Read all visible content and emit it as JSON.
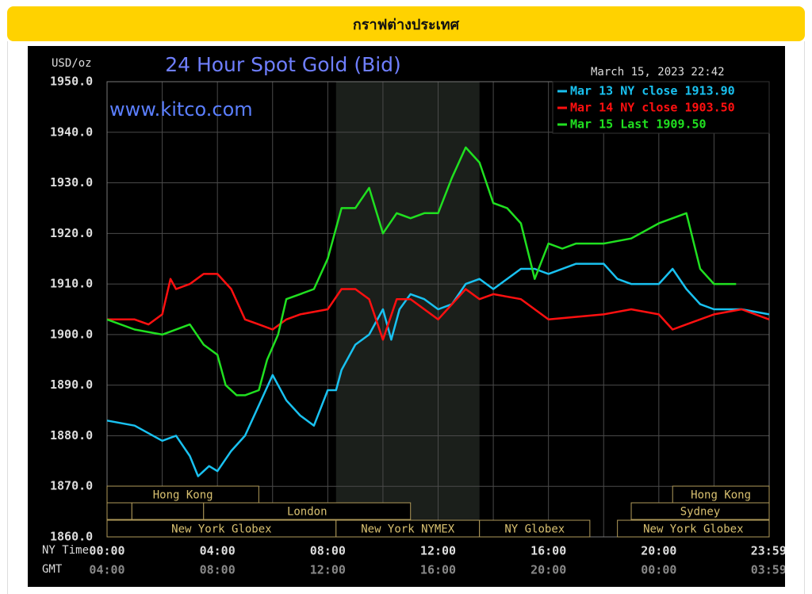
{
  "header": {
    "title": "กราฟต่างประเทศ"
  },
  "chart_data": {
    "type": "line",
    "title": "24 Hour Spot Gold (Bid)",
    "y_label": "USD/oz",
    "timestamp": "March 15, 2023 22:42",
    "watermark": "www.kitco.com",
    "xlim": [
      0,
      24
    ],
    "ylim": [
      1860,
      1950
    ],
    "yticks": [
      {
        "value": 1860,
        "label": "1860.0"
      },
      {
        "value": 1870,
        "label": "1870.0"
      },
      {
        "value": 1880,
        "label": "1880.0"
      },
      {
        "value": 1890,
        "label": "1890.0"
      },
      {
        "value": 1900,
        "label": "1900.0"
      },
      {
        "value": 1910,
        "label": "1910.0"
      },
      {
        "value": 1920,
        "label": "1920.0"
      },
      {
        "value": 1930,
        "label": "1930.0"
      },
      {
        "value": 1940,
        "label": "1940.0"
      },
      {
        "value": 1950,
        "label": "1950.0"
      }
    ],
    "x_row_labels": [
      "NY Time",
      "GMT"
    ],
    "xticks": [
      {
        "value": 0,
        "label": "00:00"
      },
      {
        "value": 4,
        "label": "04:00"
      },
      {
        "value": 8,
        "label": "08:00"
      },
      {
        "value": 12,
        "label": "12:00"
      },
      {
        "value": 16,
        "label": "16:00"
      },
      {
        "value": 20,
        "label": "20:00"
      },
      {
        "value": 23.98,
        "label": "23:59"
      }
    ],
    "gmt_labels": [
      "04:00",
      "08:00",
      "12:00",
      "16:00",
      "20:00",
      "00:00",
      "03:59"
    ],
    "xgrid": [
      0,
      2,
      4,
      6,
      8,
      10,
      12,
      14,
      16,
      18,
      20,
      22,
      24
    ],
    "grid": true,
    "shade": [
      8.3,
      13.5
    ],
    "sessions": [
      {
        "label": "Hong Kong",
        "start": 0,
        "end": 5.5,
        "row": 0
      },
      {
        "label": "Hong Kong",
        "start": 20.5,
        "end": 24,
        "row": 0
      },
      {
        "start": 0,
        "end": 0.9,
        "row": 1
      },
      {
        "start": 0.9,
        "end": 3.5,
        "row": 1
      },
      {
        "label": "London",
        "start": 3.5,
        "end": 11,
        "row": 1
      },
      {
        "label": "Sydney",
        "start": 19,
        "end": 24,
        "row": 1
      },
      {
        "label": "New York Globex",
        "start": 0,
        "end": 8.3,
        "row": 2
      },
      {
        "label": "New York NYMEX",
        "start": 8.3,
        "end": 13.5,
        "row": 2
      },
      {
        "label": "NY Globex",
        "start": 13.5,
        "end": 17.5,
        "row": 2
      },
      {
        "label": "New York Globex",
        "start": 18.5,
        "end": 24,
        "row": 2
      }
    ],
    "series": [
      {
        "name": "Mar 13 NY close 1913.90",
        "color": "#19c1f0",
        "x": [
          0,
          1,
          2,
          2.5,
          3,
          3.3,
          3.7,
          4,
          4.5,
          5,
          5.5,
          6,
          6.5,
          7,
          7.5,
          8,
          8.3,
          8.5,
          9,
          9.5,
          10,
          10.3,
          10.6,
          11,
          11.5,
          12,
          12.5,
          13,
          13.5,
          14,
          14.5,
          15,
          15.5,
          16,
          17,
          18,
          18.5,
          19,
          20,
          20.5,
          21,
          21.5,
          22,
          23,
          24
        ],
        "values": [
          1883,
          1882,
          1879,
          1880,
          1876,
          1872,
          1874,
          1873,
          1877,
          1880,
          1886,
          1892,
          1887,
          1884,
          1882,
          1889,
          1889,
          1893,
          1898,
          1900,
          1905,
          1899,
          1905,
          1908,
          1907,
          1905,
          1906,
          1910,
          1911,
          1909,
          1911,
          1913,
          1913,
          1912,
          1914,
          1914,
          1911,
          1910,
          1910,
          1913,
          1909,
          1906,
          1905,
          1905,
          1904
        ]
      },
      {
        "name": "Mar 14 NY close 1903.50",
        "color": "#ff1010",
        "x": [
          0,
          1,
          1.5,
          2,
          2.3,
          2.5,
          3,
          3.5,
          4,
          4.5,
          5,
          5.5,
          6,
          6.5,
          7,
          8,
          8.5,
          9,
          9.5,
          10,
          10.5,
          11,
          12,
          12.5,
          13,
          13.5,
          14,
          15,
          16,
          18,
          19,
          20,
          20.5,
          21,
          22,
          23,
          24
        ],
        "values": [
          1903,
          1903,
          1902,
          1904,
          1911,
          1909,
          1910,
          1912,
          1912,
          1909,
          1903,
          1902,
          1901,
          1903,
          1904,
          1905,
          1909,
          1909,
          1907,
          1899,
          1907,
          1907,
          1903,
          1906,
          1909,
          1907,
          1908,
          1907,
          1903,
          1904,
          1905,
          1904,
          1901,
          1902,
          1904,
          1905,
          1903
        ]
      },
      {
        "name": "Mar 15 Last 1909.50",
        "color": "#20e020",
        "x": [
          0,
          1,
          2,
          3,
          3.5,
          4,
          4.3,
          4.7,
          5,
          5.5,
          5.8,
          6.2,
          6.5,
          7,
          7.5,
          8,
          8.5,
          9,
          9.5,
          10,
          10.5,
          11,
          11.5,
          12,
          12.5,
          13,
          13.5,
          14,
          14.5,
          15,
          15.5,
          16,
          16.5,
          17,
          18,
          19,
          20,
          20.5,
          21,
          21.5,
          22,
          22.8
        ],
        "values": [
          1903,
          1901,
          1900,
          1902,
          1898,
          1896,
          1890,
          1888,
          1888,
          1889,
          1895,
          1900,
          1907,
          1908,
          1909,
          1915,
          1925,
          1925,
          1929,
          1920,
          1924,
          1923,
          1924,
          1924,
          1931,
          1937,
          1934,
          1926,
          1925,
          1922,
          1911,
          1918,
          1917,
          1918,
          1918,
          1919,
          1922,
          1923,
          1924,
          1913,
          1910,
          1910
        ]
      }
    ]
  }
}
